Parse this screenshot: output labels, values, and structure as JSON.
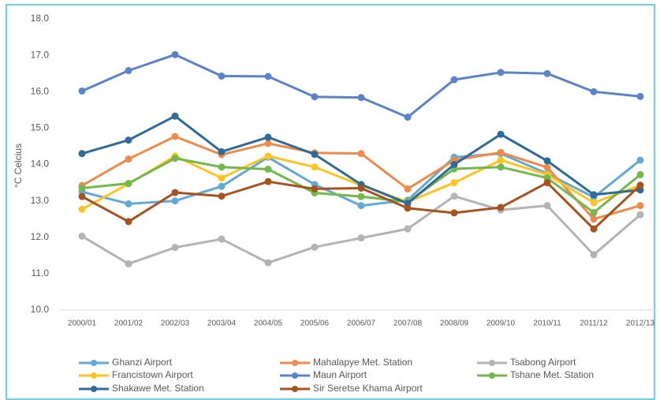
{
  "chart_data": {
    "type": "line",
    "y_label": "°C Celcius",
    "categories": [
      "2000/01",
      "2001/02",
      "2002/03",
      "2003/04",
      "2004/05",
      "2005/06",
      "2006/07",
      "2007/08",
      "2008/09",
      "2009/10",
      "2010/11",
      "2011/12",
      "2012/13"
    ],
    "ylim": [
      10,
      18
    ],
    "yticks": [
      {
        "value": 10,
        "label": "10.0"
      },
      {
        "value": 11,
        "label": "11.0"
      },
      {
        "value": 12,
        "label": "12.0"
      },
      {
        "value": 13,
        "label": "13.0"
      },
      {
        "value": 14,
        "label": "14.0"
      },
      {
        "value": 15,
        "label": "15.0"
      },
      {
        "value": 16,
        "label": "16.0"
      },
      {
        "value": 17,
        "label": "17.0"
      },
      {
        "value": 18,
        "label": "18.0"
      }
    ],
    "grid": false,
    "legend": "bottom",
    "series": [
      {
        "name": "Ghanzi Airport",
        "color": "#62a9d8",
        "values": [
          13.25,
          12.92,
          13.0,
          13.4,
          14.2,
          13.45,
          12.87,
          13.02,
          14.2,
          14.3,
          13.75,
          13.1,
          14.12
        ]
      },
      {
        "name": "Mahalapye Met. Station",
        "color": "#ee8b4c",
        "values": [
          13.42,
          14.15,
          14.77,
          14.27,
          14.58,
          14.32,
          14.3,
          13.33,
          14.12,
          14.33,
          13.92,
          12.5,
          12.87
        ]
      },
      {
        "name": "Tsabong Airport",
        "color": "#b3b3b3",
        "values": [
          12.03,
          11.27,
          11.72,
          11.95,
          11.3,
          11.73,
          11.98,
          12.23,
          13.13,
          12.75,
          12.87,
          11.52,
          12.62
        ]
      },
      {
        "name": "Francistown Airport",
        "color": "#ffc423",
        "values": [
          12.77,
          13.47,
          14.23,
          13.63,
          14.23,
          13.93,
          13.43,
          12.97,
          13.5,
          14.12,
          13.72,
          12.95,
          13.43
        ]
      },
      {
        "name": "Maun Airport",
        "color": "#5b84c8",
        "values": [
          16.02,
          16.58,
          17.02,
          16.43,
          16.42,
          15.86,
          15.84,
          15.3,
          16.33,
          16.53,
          16.5,
          16.0,
          15.87
        ]
      },
      {
        "name": "Tshane Met. Station",
        "color": "#72b84c",
        "values": [
          13.35,
          13.48,
          14.17,
          13.93,
          13.87,
          13.22,
          13.12,
          12.97,
          13.88,
          13.93,
          13.63,
          12.68,
          13.72
        ]
      },
      {
        "name": "Shakawe Met. Station",
        "color": "#2e6b98",
        "values": [
          14.3,
          14.67,
          15.33,
          14.35,
          14.75,
          14.28,
          13.45,
          12.93,
          14.0,
          14.83,
          14.1,
          13.17,
          13.3
        ]
      },
      {
        "name": "Sir Seretse Khama Airport",
        "color": "#a5541f",
        "values": [
          13.12,
          12.43,
          13.23,
          13.13,
          13.53,
          13.33,
          13.35,
          12.8,
          12.67,
          12.82,
          13.5,
          12.23,
          13.43
        ]
      }
    ]
  }
}
